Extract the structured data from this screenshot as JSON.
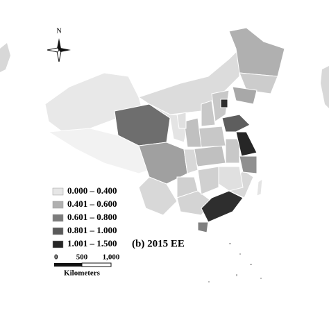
{
  "north_label": "N",
  "legend": [
    {
      "label": "0.000 – 0.400",
      "color": "#e6e6e6"
    },
    {
      "label": "0.401 – 0.600",
      "color": "#b0b0b0"
    },
    {
      "label": "0.601 – 0.800",
      "color": "#7c7c7c"
    },
    {
      "label": "0.801 – 1.000",
      "color": "#5a5a5a"
    },
    {
      "label": "1.001 – 1.500",
      "color": "#262626"
    }
  ],
  "panel_title": "(b) 2015 EE",
  "scale_bar": {
    "ticks": [
      "0",
      "500",
      "1,000"
    ],
    "unit": "Kilometers"
  }
}
